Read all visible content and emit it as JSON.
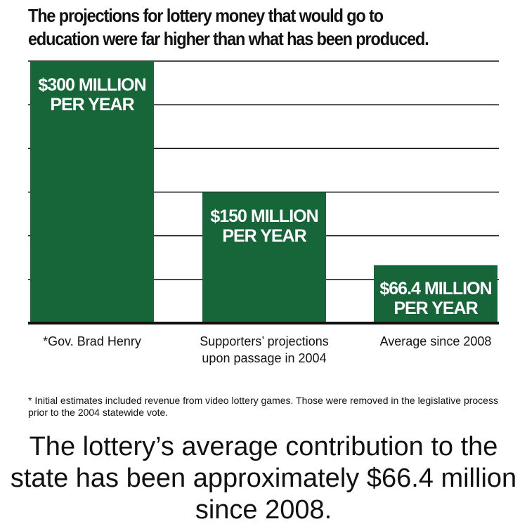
{
  "chart_data": {
    "type": "bar",
    "title": "The projections for lottery money that would go to education were far higher than what has been produced.",
    "categories": [
      "*Gov. Brad Henry",
      "Supporters’ projections upon passage in 2004",
      "Average since 2008"
    ],
    "values": [
      300,
      150,
      66.4
    ],
    "value_labels": [
      "$300 MILLION PER YEAR",
      "$150 MILLION PER YEAR",
      "$66.4 MILLION PER YEAR"
    ],
    "color": "#17663a",
    "ylim": [
      0,
      300
    ],
    "yticks": [
      0,
      50,
      100,
      150,
      200,
      250,
      300
    ],
    "grid": true,
    "footnote": "* Initial estimates included revenue from video lottery games. Those were removed in the legislative process prior to the 2004 statewide vote.",
    "conclusion": "The lottery’s average contribution to the state has been approximately $66.4 million since 2008."
  }
}
